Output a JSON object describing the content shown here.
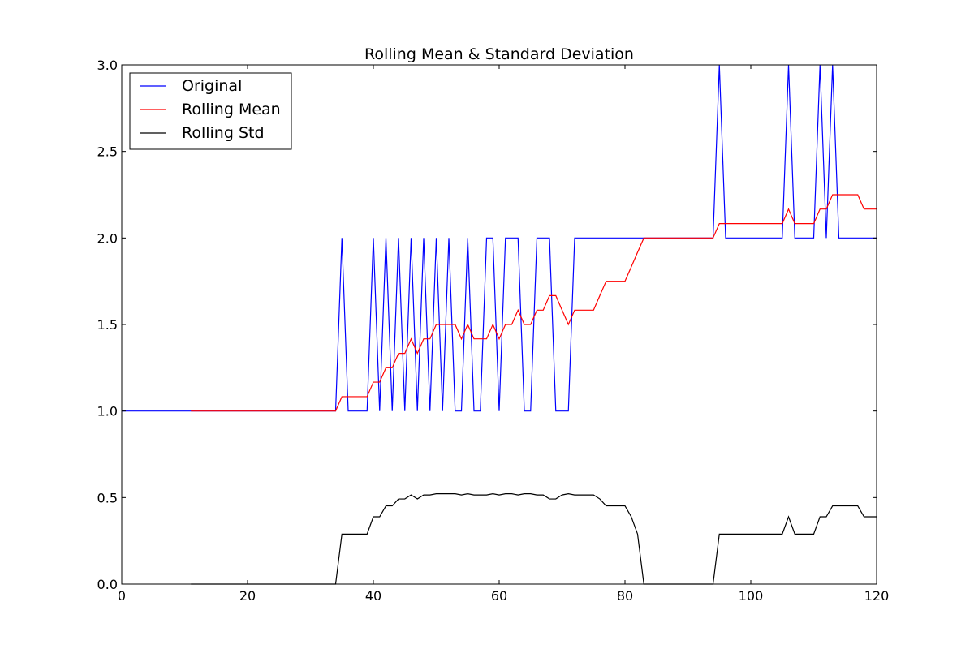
{
  "chart_data": {
    "type": "line",
    "title": "Rolling Mean & Standard Deviation",
    "xlabel": "",
    "ylabel": "",
    "xlim": [
      0,
      120
    ],
    "ylim": [
      0.0,
      3.0
    ],
    "x_ticks": [
      0,
      20,
      40,
      60,
      80,
      100,
      120
    ],
    "y_ticks": [
      0.0,
      0.5,
      1.0,
      1.5,
      2.0,
      2.5,
      3.0
    ],
    "y_tick_labels": [
      "0.0",
      "0.5",
      "1.0",
      "1.5",
      "2.0",
      "2.5",
      "3.0"
    ],
    "grid": false,
    "legend": "top-left",
    "series": [
      {
        "name": "Original",
        "color": "#0000ff",
        "x": [
          0,
          1,
          2,
          3,
          4,
          5,
          6,
          7,
          8,
          9,
          10,
          11,
          12,
          13,
          14,
          15,
          16,
          17,
          18,
          19,
          20,
          21,
          22,
          23,
          24,
          25,
          26,
          27,
          28,
          29,
          30,
          31,
          32,
          33,
          34,
          35,
          36,
          37,
          38,
          39,
          40,
          41,
          42,
          43,
          44,
          45,
          46,
          47,
          48,
          49,
          50,
          51,
          52,
          53,
          54,
          55,
          56,
          57,
          58,
          59,
          60,
          61,
          62,
          63,
          64,
          65,
          66,
          67,
          68,
          69,
          70,
          71,
          72,
          73,
          74,
          75,
          76,
          77,
          78,
          79,
          80,
          81,
          82,
          83,
          84,
          85,
          86,
          87,
          88,
          89,
          90,
          91,
          92,
          93,
          94,
          95,
          96,
          97,
          98,
          99,
          100,
          101,
          102,
          103,
          104,
          105,
          106,
          107,
          108,
          109,
          110,
          111,
          112,
          113,
          114,
          115,
          116,
          117,
          118,
          119,
          120
        ],
        "y": [
          1,
          1,
          1,
          1,
          1,
          1,
          1,
          1,
          1,
          1,
          1,
          1,
          1,
          1,
          1,
          1,
          1,
          1,
          1,
          1,
          1,
          1,
          1,
          1,
          1,
          1,
          1,
          1,
          1,
          1,
          1,
          1,
          1,
          1,
          1,
          2,
          1,
          1,
          1,
          1,
          2,
          1,
          2,
          1,
          2,
          1,
          2,
          1,
          2,
          1,
          2,
          1,
          2,
          1,
          1,
          2,
          1,
          1,
          2,
          2,
          1,
          2,
          2,
          2,
          1,
          1,
          2,
          2,
          2,
          1,
          1,
          1,
          2,
          2,
          2,
          2,
          2,
          2,
          2,
          2,
          2,
          2,
          2,
          2,
          2,
          2,
          2,
          2,
          2,
          2,
          2,
          2,
          2,
          2,
          2,
          3,
          2,
          2,
          2,
          2,
          2,
          2,
          2,
          2,
          2,
          2,
          3,
          2,
          2,
          2,
          2,
          3,
          2,
          3,
          2,
          2,
          2,
          2,
          2,
          2,
          2
        ]
      },
      {
        "name": "Rolling Mean",
        "color": "#ff0000",
        "x": [
          11,
          12,
          13,
          14,
          15,
          16,
          17,
          18,
          19,
          20,
          21,
          22,
          23,
          24,
          25,
          26,
          27,
          28,
          29,
          30,
          31,
          32,
          33,
          34,
          35,
          36,
          37,
          38,
          39,
          40,
          41,
          42,
          43,
          44,
          45,
          46,
          47,
          48,
          49,
          50,
          51,
          52,
          53,
          54,
          55,
          56,
          57,
          58,
          59,
          60,
          61,
          62,
          63,
          64,
          65,
          66,
          67,
          68,
          69,
          70,
          71,
          72,
          73,
          74,
          75,
          76,
          77,
          78,
          79,
          80,
          81,
          82,
          83,
          84,
          85,
          86,
          87,
          88,
          89,
          90,
          91,
          92,
          93,
          94,
          95,
          96,
          97,
          98,
          99,
          100,
          101,
          102,
          103,
          104,
          105,
          106,
          107,
          108,
          109,
          110,
          111,
          112,
          113,
          114,
          115,
          116,
          117,
          118,
          119,
          120
        ],
        "y": [
          1,
          1,
          1,
          1,
          1,
          1,
          1,
          1,
          1,
          1,
          1,
          1,
          1,
          1,
          1,
          1,
          1,
          1,
          1,
          1,
          1,
          1,
          1,
          1,
          1.083,
          1.083,
          1.083,
          1.083,
          1.083,
          1.167,
          1.167,
          1.25,
          1.25,
          1.333,
          1.333,
          1.417,
          1.333,
          1.417,
          1.417,
          1.5,
          1.5,
          1.5,
          1.5,
          1.417,
          1.5,
          1.417,
          1.417,
          1.417,
          1.5,
          1.417,
          1.5,
          1.5,
          1.583,
          1.5,
          1.5,
          1.583,
          1.583,
          1.667,
          1.667,
          1.583,
          1.5,
          1.583,
          1.583,
          1.583,
          1.583,
          1.667,
          1.75,
          1.75,
          1.75,
          1.75,
          1.833,
          1.917,
          2,
          2,
          2,
          2,
          2,
          2,
          2,
          2,
          2,
          2,
          2,
          2,
          2.083,
          2.083,
          2.083,
          2.083,
          2.083,
          2.083,
          2.083,
          2.083,
          2.083,
          2.083,
          2.083,
          2.167,
          2.083,
          2.083,
          2.083,
          2.083,
          2.167,
          2.167,
          2.25,
          2.25,
          2.25,
          2.25,
          2.25,
          2.167,
          2.167,
          2.167
        ]
      },
      {
        "name": "Rolling Std",
        "color": "#000000",
        "x": [
          11,
          12,
          13,
          14,
          15,
          16,
          17,
          18,
          19,
          20,
          21,
          22,
          23,
          24,
          25,
          26,
          27,
          28,
          29,
          30,
          31,
          32,
          33,
          34,
          35,
          36,
          37,
          38,
          39,
          40,
          41,
          42,
          43,
          44,
          45,
          46,
          47,
          48,
          49,
          50,
          51,
          52,
          53,
          54,
          55,
          56,
          57,
          58,
          59,
          60,
          61,
          62,
          63,
          64,
          65,
          66,
          67,
          68,
          69,
          70,
          71,
          72,
          73,
          74,
          75,
          76,
          77,
          78,
          79,
          80,
          81,
          82,
          83,
          84,
          85,
          86,
          87,
          88,
          89,
          90,
          91,
          92,
          93,
          94,
          95,
          96,
          97,
          98,
          99,
          100,
          101,
          102,
          103,
          104,
          105,
          106,
          107,
          108,
          109,
          110,
          111,
          112,
          113,
          114,
          115,
          116,
          117,
          118,
          119,
          120
        ],
        "y": [
          0,
          0,
          0,
          0,
          0,
          0,
          0,
          0,
          0,
          0,
          0,
          0,
          0,
          0,
          0,
          0,
          0,
          0,
          0,
          0,
          0,
          0,
          0,
          0,
          0.289,
          0.289,
          0.289,
          0.289,
          0.289,
          0.389,
          0.389,
          0.452,
          0.452,
          0.492,
          0.492,
          0.515,
          0.492,
          0.515,
          0.515,
          0.522,
          0.522,
          0.522,
          0.522,
          0.515,
          0.522,
          0.515,
          0.515,
          0.515,
          0.522,
          0.515,
          0.522,
          0.522,
          0.515,
          0.522,
          0.522,
          0.515,
          0.515,
          0.492,
          0.492,
          0.515,
          0.522,
          0.515,
          0.515,
          0.515,
          0.515,
          0.492,
          0.452,
          0.452,
          0.452,
          0.452,
          0.389,
          0.289,
          0,
          0,
          0,
          0,
          0,
          0,
          0,
          0,
          0,
          0,
          0,
          0,
          0.289,
          0.289,
          0.289,
          0.289,
          0.289,
          0.289,
          0.289,
          0.289,
          0.289,
          0.289,
          0.289,
          0.389,
          0.289,
          0.289,
          0.289,
          0.289,
          0.389,
          0.389,
          0.452,
          0.452,
          0.452,
          0.452,
          0.452,
          0.389,
          0.389,
          0.389
        ]
      }
    ]
  }
}
